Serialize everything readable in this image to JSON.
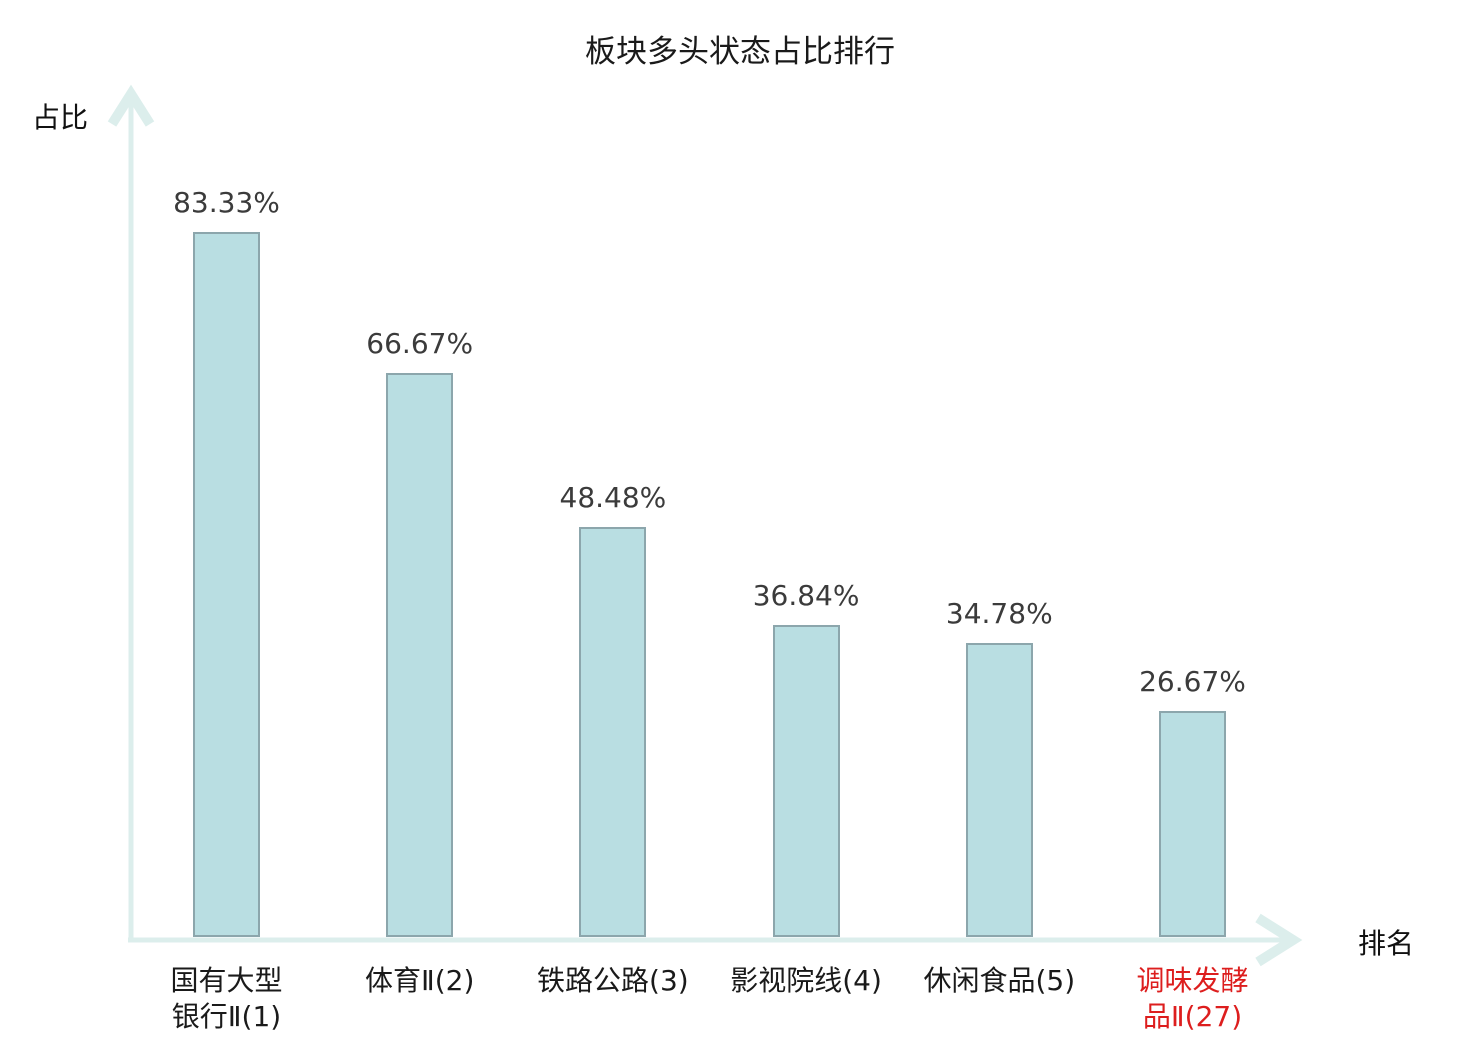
{
  "chart_data": {
    "type": "bar",
    "title": "板块多头状态占比排行",
    "xlabel": "排名",
    "ylabel": "占比",
    "ylim": [
      0,
      100
    ],
    "grid": false,
    "legend": null,
    "categories": [
      "国有大型银行Ⅱ(1)",
      "体育Ⅱ(2)",
      "铁路公路(3)",
      "影视院线(4)",
      "休闲食品(5)",
      "调味发酵品Ⅱ(27)"
    ],
    "values": [
      83.33,
      66.67,
      48.48,
      36.84,
      34.78,
      26.67
    ],
    "bars": [
      {
        "category": "国有大型银行Ⅱ(1)",
        "tick_lines": "国有大型\n银行Ⅱ(1)",
        "value": 83.33,
        "value_label": "83.33%",
        "highlighted": false
      },
      {
        "category": "体育Ⅱ(2)",
        "tick_lines": "体育Ⅱ(2)",
        "value": 66.67,
        "value_label": "66.67%",
        "highlighted": false
      },
      {
        "category": "铁路公路(3)",
        "tick_lines": "铁路公路(3)",
        "value": 48.48,
        "value_label": "48.48%",
        "highlighted": false
      },
      {
        "category": "影视院线(4)",
        "tick_lines": "影视院线(4)",
        "value": 36.84,
        "value_label": "36.84%",
        "highlighted": false
      },
      {
        "category": "休闲食品(5)",
        "tick_lines": "休闲食品(5)",
        "value": 34.78,
        "value_label": "34.78%",
        "highlighted": false
      },
      {
        "category": "调味发酵品Ⅱ(27)",
        "tick_lines": "调味发酵\n品Ⅱ(27)",
        "value": 26.67,
        "value_label": "26.67%",
        "highlighted": true
      }
    ]
  },
  "colors": {
    "bar_fill": "#b9dee2",
    "bar_border": "#8ca6ac",
    "axis": "#dceeec",
    "title": "#1a1a1a",
    "value_label": "#3b3b3b",
    "tick_label": "#1a1a1a",
    "highlight": "#dd1e1e"
  }
}
